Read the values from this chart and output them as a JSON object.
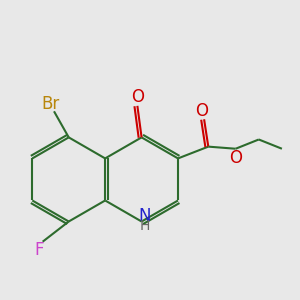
{
  "bg_color": "#e8e8e8",
  "bond_color": "#2d6b2d",
  "atom_colors": {
    "Br": "#b8860b",
    "F": "#cc44cc",
    "N": "#2222cc",
    "H": "#666666",
    "O": "#cc0000"
  },
  "font_size": 11,
  "lw": 1.5
}
